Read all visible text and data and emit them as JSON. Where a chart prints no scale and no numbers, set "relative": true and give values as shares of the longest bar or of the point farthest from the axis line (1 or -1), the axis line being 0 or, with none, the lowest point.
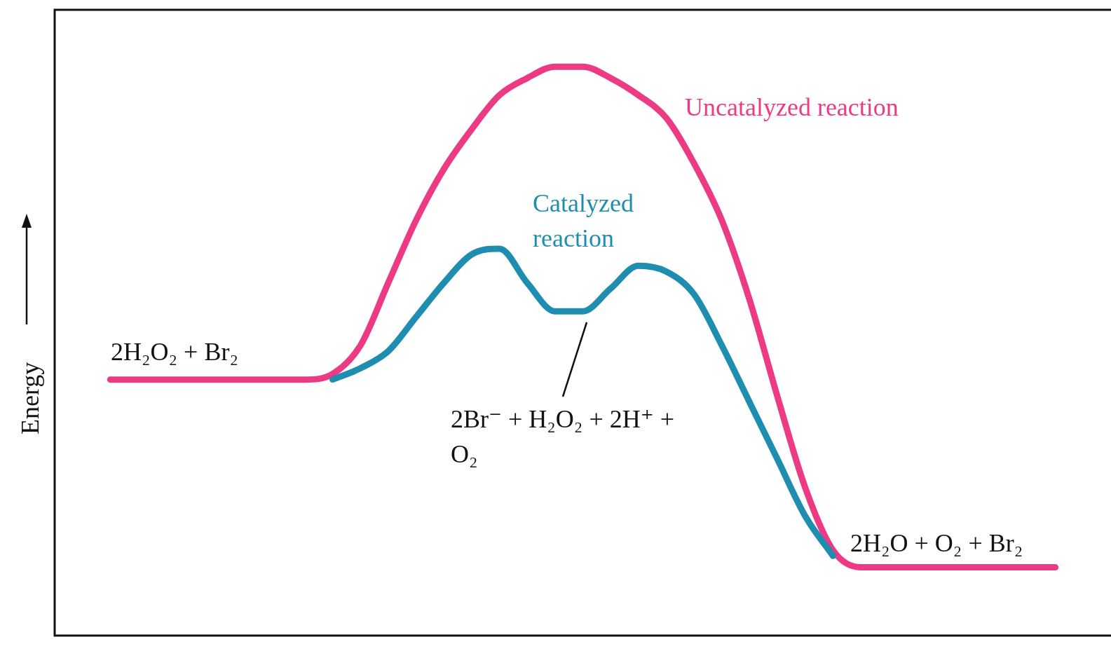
{
  "chart_data": {
    "type": "line",
    "ylabel": "Energy",
    "relative": true,
    "categories": [
      null,
      null,
      null,
      null,
      null,
      null,
      null,
      null,
      null,
      null,
      null,
      null,
      null,
      null,
      null,
      null,
      null,
      null,
      null,
      null,
      null,
      null,
      null,
      null,
      null,
      null,
      null,
      null,
      null,
      null,
      null,
      null,
      null,
      null,
      null,
      null,
      null,
      null,
      null
    ],
    "series": [
      {
        "name": "Uncatalyzed reaction",
        "color": "#ec3a84",
        "values": [
          null,
          null,
          0.45,
          0.45,
          0.45,
          0.45,
          0.45,
          0.45,
          0.45,
          0.45,
          0.46,
          0.51,
          0.62,
          0.73,
          0.82,
          0.89,
          0.95,
          0.98,
          1,
          1,
          0.98,
          0.95,
          0.91,
          0.83,
          0.73,
          0.59,
          0.42,
          0.26,
          0.15,
          0.12,
          0.12,
          0.12,
          0.12,
          0.12,
          0.12,
          0.12,
          0.12,
          null,
          null
        ]
      },
      {
        "name": "Catalyzed reaction",
        "color": "#1e8db0",
        "values": [
          null,
          null,
          null,
          null,
          null,
          null,
          null,
          null,
          null,
          null,
          0.45,
          0.47,
          0.5,
          0.56,
          0.62,
          0.67,
          0.68,
          0.62,
          0.57,
          0.57,
          0.61,
          0.65,
          0.64,
          0.6,
          0.51,
          0.41,
          0.31,
          0.21,
          0.14,
          null,
          null,
          null,
          null,
          null,
          null,
          null,
          null,
          null,
          null
        ]
      }
    ],
    "annotations": [
      "2H₂O₂ + Br₂",
      "2Br⁻ + H₂O₂ + 2H⁺ + O₂",
      "2H₂O + O₂ + Br₂"
    ]
  }
}
